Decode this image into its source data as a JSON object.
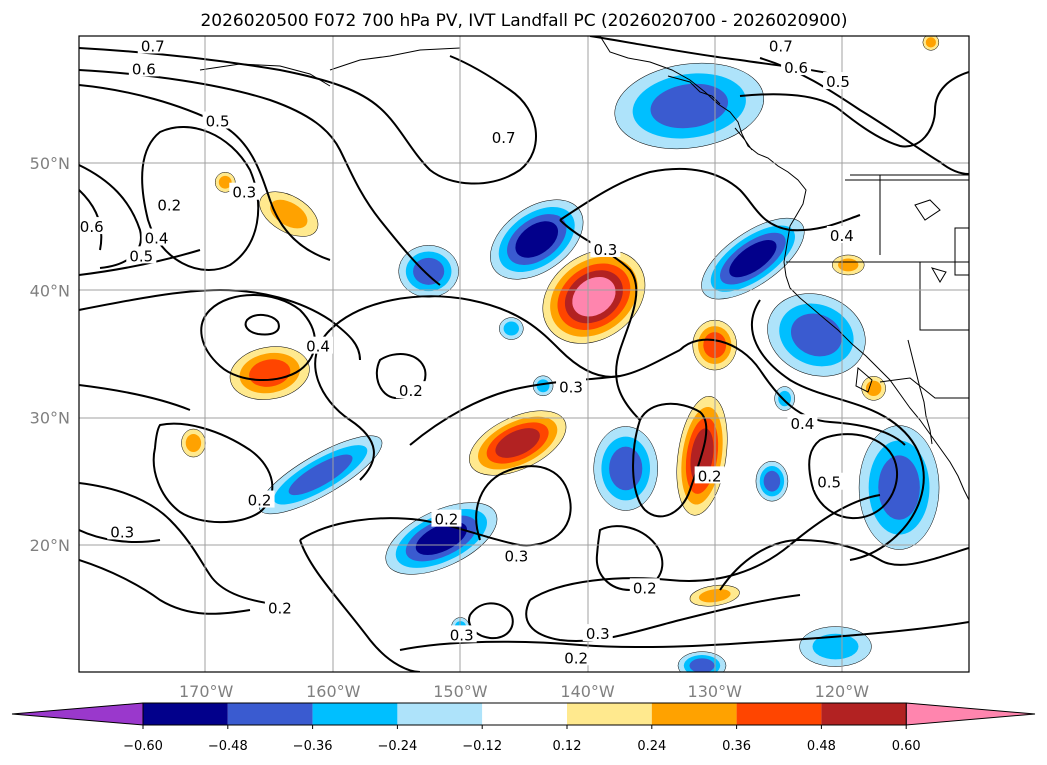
{
  "chart_data": {
    "type": "contourf-map",
    "title": "2026020500 F072 700 hPa PV, IVT Landfall PC (2026020700 - 2026020900)",
    "region": "Northeast Pacific",
    "x_ticks": [
      "170°W",
      "160°W",
      "150°W",
      "140°W",
      "130°W",
      "120°W"
    ],
    "x_tick_values": [
      -170,
      -160,
      -150,
      -140,
      -130,
      -120
    ],
    "y_ticks": [
      "50°N",
      "40°N",
      "30°N",
      "20°N"
    ],
    "y_tick_values": [
      50,
      40,
      30,
      20
    ],
    "xlim": [
      -180,
      -110
    ],
    "ylim": [
      10,
      60
    ],
    "filled_field": "IVT Landfall PC",
    "contour_field": "700 hPa PV",
    "colorbar": {
      "tick_labels": [
        "−0.60",
        "−0.48",
        "−0.36",
        "−0.24",
        "−0.12",
        "0.12",
        "0.24",
        "0.36",
        "0.48",
        "0.60"
      ],
      "levels": [
        -0.6,
        -0.48,
        -0.36,
        -0.24,
        -0.12,
        0.12,
        0.24,
        0.36,
        0.48,
        0.6
      ],
      "colors": [
        "#9a38cc",
        "#02008b",
        "#3a5bd0",
        "#00bfff",
        "#aee3fa",
        "#ffffff",
        "#ffe98e",
        "#ffa200",
        "#ff4500",
        "#b22222",
        "#ff85ae"
      ],
      "extend": "both"
    },
    "contour_labels": [
      {
        "text": "0.7",
        "lon": -174.2,
        "lat": 59.1
      },
      {
        "text": "0.6",
        "lon": -174.9,
        "lat": 57.3
      },
      {
        "text": "0.5",
        "lon": -169.1,
        "lat": 53.2
      },
      {
        "text": "0.3",
        "lon": -167.0,
        "lat": 47.6
      },
      {
        "text": "0.2",
        "lon": -172.9,
        "lat": 46.6
      },
      {
        "text": "0.4",
        "lon": -173.9,
        "lat": 44.0
      },
      {
        "text": "0.6",
        "lon": -179.0,
        "lat": 44.9
      },
      {
        "text": "0.5",
        "lon": -175.1,
        "lat": 42.6
      },
      {
        "text": "0.7",
        "lon": -146.6,
        "lat": 51.9
      },
      {
        "text": "0.7",
        "lon": -124.8,
        "lat": 59.1
      },
      {
        "text": "0.6",
        "lon": -123.6,
        "lat": 57.4
      },
      {
        "text": "0.5",
        "lon": -120.3,
        "lat": 56.3
      },
      {
        "text": "0.3",
        "lon": -138.6,
        "lat": 43.1
      },
      {
        "text": "0.4",
        "lon": -120.0,
        "lat": 44.2
      },
      {
        "text": "0.4",
        "lon": -161.2,
        "lat": 35.5
      },
      {
        "text": "0.2",
        "lon": -153.9,
        "lat": 32.0
      },
      {
        "text": "0.3",
        "lon": -141.3,
        "lat": 32.3
      },
      {
        "text": "0.4",
        "lon": -123.1,
        "lat": 29.4
      },
      {
        "text": "0.2",
        "lon": -130.4,
        "lat": 25.3
      },
      {
        "text": "0.5",
        "lon": -121.0,
        "lat": 24.8
      },
      {
        "text": "0.2",
        "lon": -165.8,
        "lat": 23.4
      },
      {
        "text": "0.3",
        "lon": -176.6,
        "lat": 20.9
      },
      {
        "text": "0.2",
        "lon": -151.1,
        "lat": 21.9
      },
      {
        "text": "0.3",
        "lon": -145.6,
        "lat": 19.0
      },
      {
        "text": "0.2",
        "lon": -135.5,
        "lat": 16.5
      },
      {
        "text": "0.2",
        "lon": -164.2,
        "lat": 14.9
      },
      {
        "text": "0.3",
        "lon": -149.9,
        "lat": 12.8
      },
      {
        "text": "0.3",
        "lon": -139.2,
        "lat": 12.9
      },
      {
        "text": "0.2",
        "lon": -140.9,
        "lat": 11.0
      }
    ]
  }
}
